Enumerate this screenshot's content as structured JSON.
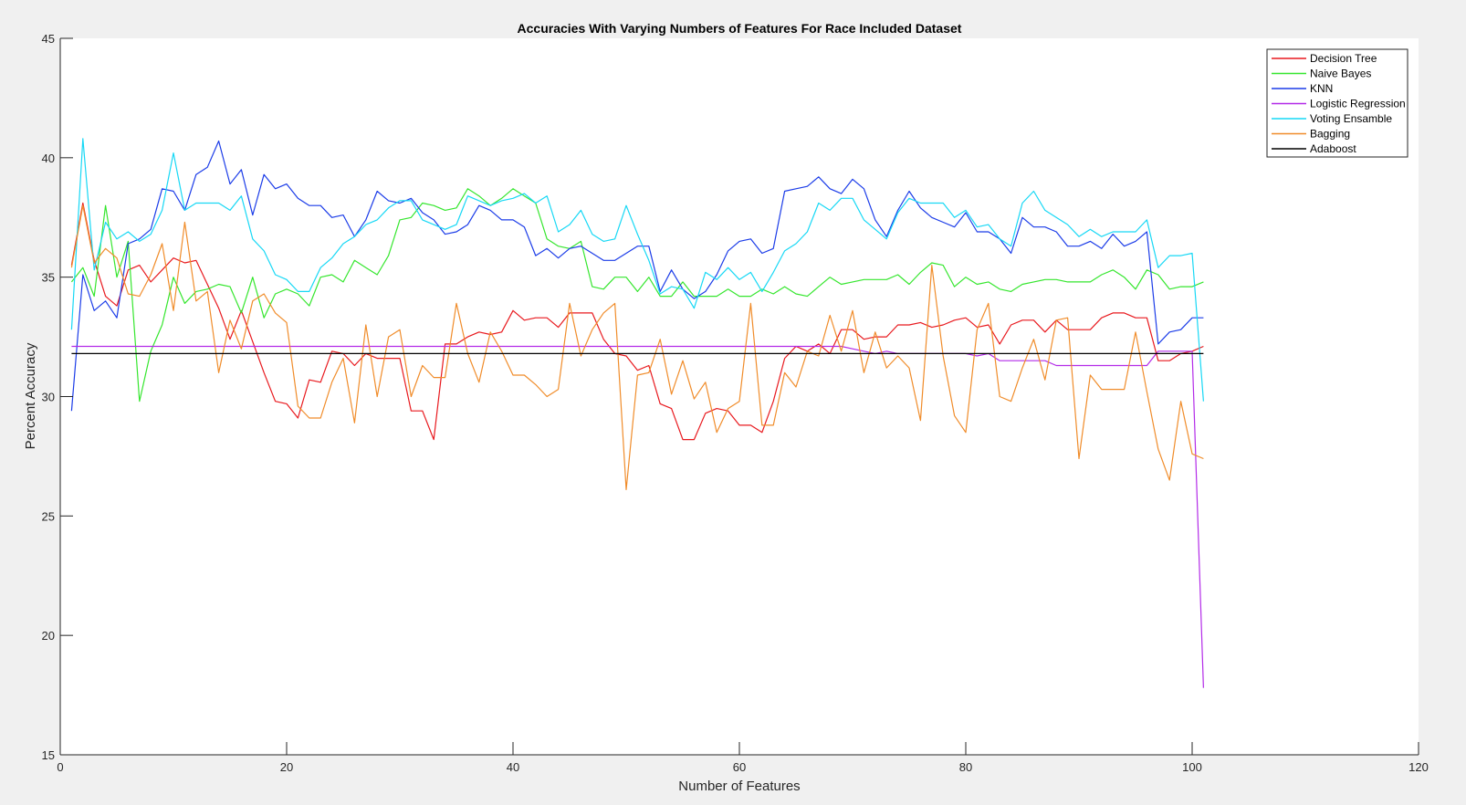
{
  "chart_data": {
    "type": "line",
    "title": "Accuracies With Varying Numbers of Features For Race Included Dataset",
    "xlabel": "Number of Features",
    "ylabel": "Percent Accuracy",
    "xlim": [
      0,
      120
    ],
    "ylim": [
      15,
      45
    ],
    "xticks": [
      0,
      20,
      40,
      60,
      80,
      100,
      120
    ],
    "yticks": [
      15,
      20,
      25,
      30,
      35,
      40,
      45
    ],
    "grid": false,
    "legend_position": "top-right",
    "x_start": 1,
    "series": [
      {
        "name": "Decision Tree",
        "color": "#e8191e",
        "values": [
          35.5,
          38.1,
          35.7,
          34.2,
          33.8,
          35.3,
          35.5,
          34.8,
          35.3,
          35.8,
          35.6,
          35.7,
          34.7,
          33.7,
          32.4,
          33.6,
          32.3,
          31.0,
          29.8,
          29.7,
          29.1,
          30.7,
          30.6,
          31.9,
          31.8,
          31.3,
          31.8,
          31.6,
          31.6,
          31.6,
          29.4,
          29.4,
          28.2,
          32.2,
          32.2,
          32.5,
          32.7,
          32.6,
          32.7,
          33.6,
          33.2,
          33.3,
          33.3,
          32.9,
          33.5,
          33.5,
          33.5,
          32.4,
          31.8,
          31.7,
          31.1,
          31.3,
          29.7,
          29.5,
          28.2,
          28.2,
          29.3,
          29.5,
          29.4,
          28.8,
          28.8,
          28.5,
          29.8,
          31.6,
          32.1,
          31.9,
          32.2,
          31.8,
          32.8,
          32.8,
          32.4,
          32.5,
          32.5,
          33.0,
          33.0,
          33.1,
          32.9,
          33.0,
          33.2,
          33.3,
          32.9,
          33.0,
          32.2,
          33.0,
          33.2,
          33.2,
          32.7,
          33.2,
          32.8,
          32.8,
          32.8,
          33.3,
          33.5,
          33.5,
          33.3,
          33.3,
          31.5,
          31.5,
          31.8,
          31.9,
          32.1
        ]
      },
      {
        "name": "Naive Bayes",
        "color": "#35e62e",
        "values": [
          34.8,
          35.4,
          34.2,
          38.0,
          35.0,
          36.5,
          29.8,
          31.9,
          33.0,
          35.0,
          33.9,
          34.4,
          34.5,
          34.7,
          34.6,
          33.5,
          35.0,
          33.3,
          34.3,
          34.5,
          34.3,
          33.8,
          35.0,
          35.1,
          34.8,
          35.7,
          35.4,
          35.1,
          35.9,
          37.4,
          37.5,
          38.1,
          38.0,
          37.8,
          37.9,
          38.7,
          38.4,
          38.0,
          38.3,
          38.7,
          38.4,
          38.1,
          36.6,
          36.3,
          36.2,
          36.5,
          34.6,
          34.5,
          35.0,
          35.0,
          34.4,
          35.0,
          34.2,
          34.2,
          34.8,
          34.2,
          34.2,
          34.2,
          34.5,
          34.2,
          34.2,
          34.5,
          34.3,
          34.6,
          34.3,
          34.2,
          34.6,
          35.0,
          34.7,
          34.8,
          34.9,
          34.9,
          34.9,
          35.1,
          34.7,
          35.2,
          35.6,
          35.5,
          34.6,
          35.0,
          34.7,
          34.8,
          34.5,
          34.4,
          34.7,
          34.8,
          34.9,
          34.9,
          34.8,
          34.8,
          34.8,
          35.1,
          35.3,
          35.0,
          34.5,
          35.3,
          35.1,
          34.5,
          34.6,
          34.6,
          34.8
        ]
      },
      {
        "name": "KNN",
        "color": "#1b3ce8",
        "values": [
          29.4,
          35.1,
          33.6,
          34.0,
          33.3,
          36.4,
          36.6,
          37.0,
          38.7,
          38.6,
          37.8,
          39.3,
          39.6,
          40.7,
          38.9,
          39.5,
          37.6,
          39.3,
          38.7,
          38.9,
          38.3,
          38.0,
          38.0,
          37.5,
          37.6,
          36.7,
          37.4,
          38.6,
          38.2,
          38.1,
          38.3,
          37.7,
          37.4,
          36.8,
          36.9,
          37.2,
          38.0,
          37.8,
          37.4,
          37.4,
          37.1,
          35.9,
          36.2,
          35.8,
          36.2,
          36.3,
          36.0,
          35.7,
          35.7,
          36.0,
          36.3,
          36.3,
          34.4,
          35.3,
          34.5,
          34.1,
          34.4,
          35.1,
          36.1,
          36.5,
          36.6,
          36.0,
          36.2,
          38.6,
          38.7,
          38.8,
          39.2,
          38.7,
          38.5,
          39.1,
          38.7,
          37.4,
          36.7,
          37.8,
          38.6,
          37.9,
          37.5,
          37.3,
          37.1,
          37.7,
          36.9,
          36.9,
          36.6,
          36.0,
          37.5,
          37.1,
          37.1,
          36.9,
          36.3,
          36.3,
          36.5,
          36.2,
          36.8,
          36.3,
          36.5,
          36.9,
          32.2,
          32.7,
          32.8,
          33.3,
          33.3
        ]
      },
      {
        "name": "Logistic Regression",
        "color": "#b32be8",
        "values": [
          32.1,
          32.1,
          32.1,
          32.1,
          32.1,
          32.1,
          32.1,
          32.1,
          32.1,
          32.1,
          32.1,
          32.1,
          32.1,
          32.1,
          32.1,
          32.1,
          32.1,
          32.1,
          32.1,
          32.1,
          32.1,
          32.1,
          32.1,
          32.1,
          32.1,
          32.1,
          32.1,
          32.1,
          32.1,
          32.1,
          32.1,
          32.1,
          32.1,
          32.1,
          32.1,
          32.1,
          32.1,
          32.1,
          32.1,
          32.1,
          32.1,
          32.1,
          32.1,
          32.1,
          32.1,
          32.1,
          32.1,
          32.1,
          32.1,
          32.1,
          32.1,
          32.1,
          32.1,
          32.1,
          32.1,
          32.1,
          32.1,
          32.1,
          32.1,
          32.1,
          32.1,
          32.1,
          32.1,
          32.1,
          32.1,
          32.1,
          32.1,
          32.1,
          32.1,
          32.0,
          31.9,
          31.8,
          31.9,
          31.8,
          31.8,
          31.8,
          31.8,
          31.8,
          31.8,
          31.8,
          31.7,
          31.8,
          31.5,
          31.5,
          31.5,
          31.5,
          31.5,
          31.3,
          31.3,
          31.3,
          31.3,
          31.3,
          31.3,
          31.3,
          31.3,
          31.3,
          31.9,
          31.9,
          31.9,
          31.9,
          17.8
        ]
      },
      {
        "name": "Voting Ensamble",
        "color": "#17d8f5",
        "values": [
          32.8,
          40.8,
          35.3,
          37.3,
          36.6,
          36.9,
          36.5,
          36.8,
          37.8,
          40.2,
          37.8,
          38.1,
          38.1,
          38.1,
          37.8,
          38.4,
          36.6,
          36.1,
          35.1,
          34.9,
          34.4,
          34.4,
          35.4,
          35.8,
          36.4,
          36.7,
          37.2,
          37.4,
          37.9,
          38.2,
          38.2,
          37.4,
          37.2,
          37.0,
          37.2,
          38.4,
          38.2,
          38.0,
          38.2,
          38.3,
          38.5,
          38.1,
          38.4,
          36.9,
          37.2,
          37.8,
          36.8,
          36.5,
          36.6,
          38.0,
          36.8,
          35.7,
          34.3,
          34.6,
          34.5,
          33.7,
          35.2,
          34.9,
          35.4,
          34.9,
          35.2,
          34.4,
          35.2,
          36.1,
          36.4,
          36.9,
          38.1,
          37.8,
          38.3,
          38.3,
          37.4,
          37.0,
          36.6,
          37.7,
          38.3,
          38.1,
          38.1,
          38.1,
          37.5,
          37.8,
          37.1,
          37.2,
          36.6,
          36.3,
          38.1,
          38.6,
          37.8,
          37.5,
          37.2,
          36.7,
          37.0,
          36.7,
          36.9,
          36.9,
          36.9,
          37.4,
          35.4,
          35.9,
          35.9,
          36.0,
          29.8
        ]
      },
      {
        "name": "Bagging",
        "color": "#f08c2a",
        "values": [
          35.4,
          38.0,
          35.6,
          36.2,
          35.8,
          34.3,
          34.2,
          35.1,
          36.4,
          33.6,
          37.3,
          34.0,
          34.4,
          31.0,
          33.2,
          32.0,
          34.0,
          34.3,
          33.5,
          33.1,
          29.6,
          29.1,
          29.1,
          30.6,
          31.6,
          28.9,
          33.0,
          30.0,
          32.5,
          32.8,
          30.0,
          31.3,
          30.8,
          30.8,
          33.9,
          31.8,
          30.6,
          32.7,
          31.9,
          30.9,
          30.9,
          30.5,
          30.0,
          30.3,
          33.9,
          31.7,
          32.8,
          33.5,
          33.9,
          26.1,
          30.9,
          31.0,
          32.4,
          30.1,
          31.5,
          29.9,
          30.6,
          28.5,
          29.5,
          29.8,
          33.9,
          28.8,
          28.8,
          31.0,
          30.4,
          31.9,
          31.7,
          33.4,
          31.9,
          33.6,
          31.0,
          32.7,
          31.2,
          31.7,
          31.2,
          29.0,
          35.5,
          31.7,
          29.2,
          28.5,
          32.8,
          33.9,
          30.0,
          29.8,
          31.2,
          32.4,
          30.7,
          33.2,
          33.3,
          27.4,
          30.9,
          30.3,
          30.3,
          30.3,
          32.7,
          30.2,
          27.8,
          26.5,
          29.8,
          27.6,
          27.4
        ]
      },
      {
        "name": "Adaboost",
        "color": "#000000",
        "values": [
          31.8,
          31.8,
          31.8,
          31.8,
          31.8,
          31.8,
          31.8,
          31.8,
          31.8,
          31.8,
          31.8,
          31.8,
          31.8,
          31.8,
          31.8,
          31.8,
          31.8,
          31.8,
          31.8,
          31.8,
          31.8,
          31.8,
          31.8,
          31.8,
          31.8,
          31.8,
          31.8,
          31.8,
          31.8,
          31.8,
          31.8,
          31.8,
          31.8,
          31.8,
          31.8,
          31.8,
          31.8,
          31.8,
          31.8,
          31.8,
          31.8,
          31.8,
          31.8,
          31.8,
          31.8,
          31.8,
          31.8,
          31.8,
          31.8,
          31.8,
          31.8,
          31.8,
          31.8,
          31.8,
          31.8,
          31.8,
          31.8,
          31.8,
          31.8,
          31.8,
          31.8,
          31.8,
          31.8,
          31.8,
          31.8,
          31.8,
          31.8,
          31.8,
          31.8,
          31.8,
          31.8,
          31.8,
          31.8,
          31.8,
          31.8,
          31.8,
          31.8,
          31.8,
          31.8,
          31.8,
          31.8,
          31.8,
          31.8,
          31.8,
          31.8,
          31.8,
          31.8,
          31.8,
          31.8,
          31.8,
          31.8,
          31.8,
          31.8,
          31.8,
          31.8,
          31.8,
          31.8,
          31.8,
          31.8,
          31.8,
          31.8
        ]
      }
    ]
  }
}
